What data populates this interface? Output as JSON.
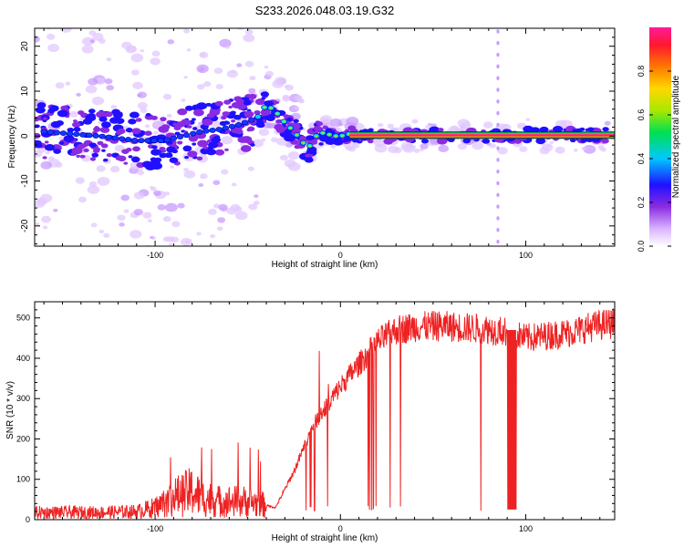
{
  "title": "S233.2026.048.03.19.G32",
  "chart_data": [
    {
      "type": "heatmap",
      "name": "spectrogram",
      "xlabel": "Height of straight line (km)",
      "ylabel": "Frequency (Hz)",
      "xlim": [
        -165,
        148
      ],
      "ylim": [
        -24.5,
        24
      ],
      "xticks": [
        -100,
        0,
        100
      ],
      "yticks": [
        -20,
        -10,
        0,
        10,
        20
      ],
      "ridge": [
        [
          -160,
          1
        ],
        [
          -145,
          0.5
        ],
        [
          -130,
          0
        ],
        [
          -110,
          -1
        ],
        [
          -95,
          -1
        ],
        [
          -85,
          0
        ],
        [
          -75,
          1
        ],
        [
          -65,
          1.5
        ],
        [
          -55,
          2.5
        ],
        [
          -45,
          4
        ],
        [
          -40,
          7
        ],
        [
          -35,
          5.5
        ],
        [
          -30,
          3
        ],
        [
          -25,
          1
        ],
        [
          -20,
          -1.5
        ],
        [
          -17,
          -2.5
        ],
        [
          -13,
          0
        ],
        [
          -8,
          1
        ],
        [
          -5,
          0
        ],
        [
          0,
          0
        ],
        [
          5,
          0.5
        ],
        [
          10,
          0.2
        ],
        [
          20,
          0.2
        ],
        [
          40,
          0.2
        ],
        [
          60,
          0.2
        ],
        [
          80,
          0.2
        ],
        [
          148,
          0.2
        ]
      ],
      "colorbar": {
        "label": "Normalized spectral amplitude",
        "range": [
          0,
          1
        ],
        "ticks": [
          "0.0",
          "0.2",
          "0.4",
          "0.6",
          "0.8"
        ]
      }
    },
    {
      "type": "line",
      "name": "snr",
      "xlabel": "Height of straight line (km)",
      "ylabel": "SNR (10 * v/v)",
      "xlim": [
        -165,
        148
      ],
      "ylim": [
        0,
        540
      ],
      "xticks": [
        -100,
        0,
        100
      ],
      "yticks": [
        0,
        100,
        200,
        300,
        400,
        500
      ],
      "color": "#ee2222",
      "envelope": [
        [
          -165,
          18
        ],
        [
          -130,
          18
        ],
        [
          -110,
          20
        ],
        [
          -100,
          30
        ],
        [
          -90,
          55
        ],
        [
          -80,
          70
        ],
        [
          -75,
          55
        ],
        [
          -65,
          45
        ],
        [
          -50,
          45
        ],
        [
          -45,
          40
        ],
        [
          -35,
          30
        ],
        [
          -25,
          120
        ],
        [
          -15,
          230
        ],
        [
          -8,
          280
        ],
        [
          0,
          330
        ],
        [
          10,
          385
        ],
        [
          20,
          440
        ],
        [
          30,
          470
        ],
        [
          40,
          478
        ],
        [
          55,
          480
        ],
        [
          70,
          475
        ],
        [
          80,
          472
        ],
        [
          90,
          465
        ],
        [
          100,
          450
        ],
        [
          110,
          455
        ],
        [
          125,
          465
        ],
        [
          135,
          478
        ],
        [
          148,
          488
        ]
      ],
      "dropout_region": [
        90,
        95
      ]
    }
  ]
}
